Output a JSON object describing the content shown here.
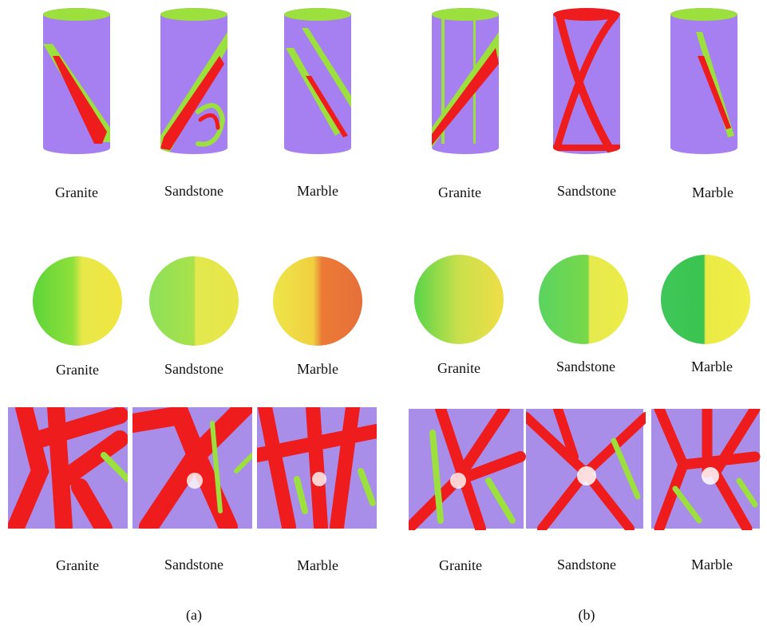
{
  "panels": [
    {
      "label": "(a)",
      "rows": [
        {
          "labels": [
            "Granite",
            "Sandstone",
            "Marble"
          ]
        },
        {
          "labels": [
            "Granite",
            "Sandstone",
            "Marble"
          ]
        },
        {
          "labels": [
            "Granite",
            "Sandstone",
            "Marble"
          ]
        }
      ]
    },
    {
      "label": "(b)",
      "rows": [
        {
          "labels": [
            "Granite",
            "Sandstone",
            "Marble"
          ]
        },
        {
          "labels": [
            "Granite",
            "Sandstone",
            "Marble"
          ]
        },
        {
          "labels": [
            "Granite",
            "Sandstone",
            "Marble"
          ]
        }
      ]
    }
  ]
}
